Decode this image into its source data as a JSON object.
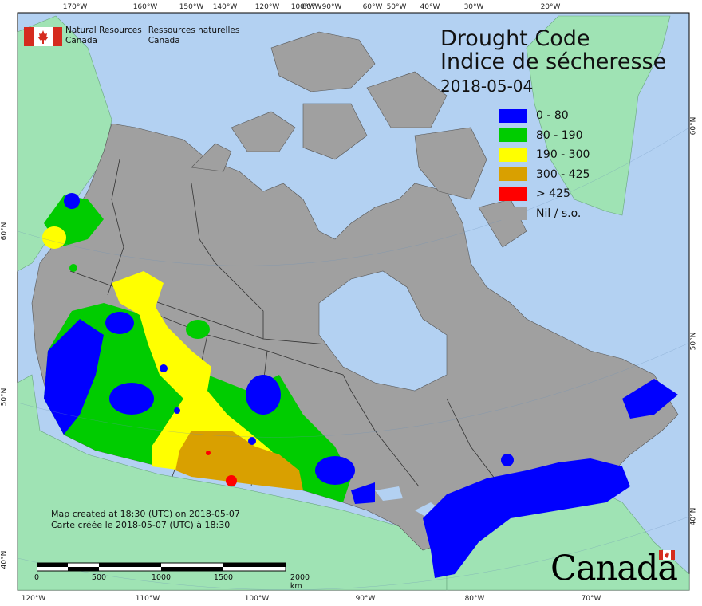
{
  "title": {
    "line1": "Drought Code",
    "line2": "Indice de sécheresse",
    "date": "2018-05-04"
  },
  "agency": {
    "en_line1": "Natural Resources",
    "en_line2": "Canada",
    "fr_line1": "Ressources naturelles",
    "fr_line2": "Canada"
  },
  "legend": [
    {
      "label": "0 - 80",
      "color": "#0000ff"
    },
    {
      "label": "80 - 190",
      "color": "#00cc00"
    },
    {
      "label": "190 - 300",
      "color": "#ffff00"
    },
    {
      "label": "300 - 425",
      "color": "#d9a000"
    },
    {
      "label": "> 425",
      "color": "#ff0000"
    },
    {
      "label": "Nil / s.o.",
      "color": "#a0a0a0"
    }
  ],
  "credit": {
    "line1": "Map created at 18:30 (UTC) on 2018-05-07",
    "line2": "Carte créée le 2018-05-07 (UTC) à 18:30"
  },
  "scale_bar": {
    "labels": [
      "0",
      "500",
      "1000",
      "1500",
      "2000 km"
    ]
  },
  "graticule": {
    "top": [
      "170°W",
      "160°W",
      "150°W",
      "140°W",
      "120°W",
      "100°W",
      "90°W",
      "80°W",
      "60°W",
      "50°W",
      "40°W",
      "30°W",
      "20°W"
    ],
    "bottom": [
      "120°W",
      "110°W",
      "100°W",
      "90°W",
      "80°W",
      "70°W"
    ],
    "left": [
      "60°N",
      "50°N",
      "40°N"
    ],
    "right": [
      "60°N",
      "50°N",
      "40°N"
    ]
  },
  "wordmark": "Canada",
  "colors": {
    "ocean": "#b3d1f2",
    "land_other": "#9fe3b4",
    "land_nil": "#a0a0a0",
    "red": "#d52b1e"
  }
}
